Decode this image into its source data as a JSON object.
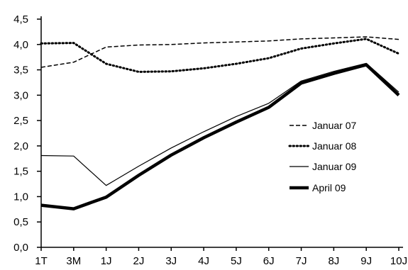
{
  "chart_data": {
    "type": "line",
    "title": "",
    "xlabel": "",
    "ylabel": "",
    "categories": [
      "1T",
      "3M",
      "1J",
      "2J",
      "3J",
      "4J",
      "5J",
      "6J",
      "7J",
      "8J",
      "9J",
      "10J"
    ],
    "y_ticks": [
      "0,0",
      "0,5",
      "1,0",
      "1,5",
      "2,0",
      "2,5",
      "3,0",
      "3,5",
      "4,0",
      "4,5"
    ],
    "ylim": [
      0,
      4.5
    ],
    "grid": false,
    "legend_position": "right",
    "series": [
      {
        "name": "Januar 07",
        "style": "dashed",
        "color": "#000000",
        "values": [
          3.55,
          3.65,
          3.95,
          3.99,
          4.0,
          4.03,
          4.05,
          4.07,
          4.11,
          4.13,
          4.15,
          4.1
        ]
      },
      {
        "name": "Januar 08",
        "style": "dotted",
        "color": "#000000",
        "values": [
          4.02,
          4.03,
          3.62,
          3.46,
          3.47,
          3.53,
          3.62,
          3.73,
          3.92,
          4.02,
          4.11,
          3.82
        ]
      },
      {
        "name": "Januar 09",
        "style": "thin",
        "color": "#000000",
        "values": [
          1.81,
          1.8,
          1.22,
          1.6,
          1.96,
          2.28,
          2.58,
          2.84,
          3.28,
          3.47,
          3.63,
          3.06
        ]
      },
      {
        "name": "April 09",
        "style": "thick",
        "color": "#000000",
        "values": [
          0.83,
          0.76,
          0.99,
          1.42,
          1.82,
          2.16,
          2.47,
          2.76,
          3.24,
          3.43,
          3.6,
          3.0
        ]
      }
    ]
  }
}
